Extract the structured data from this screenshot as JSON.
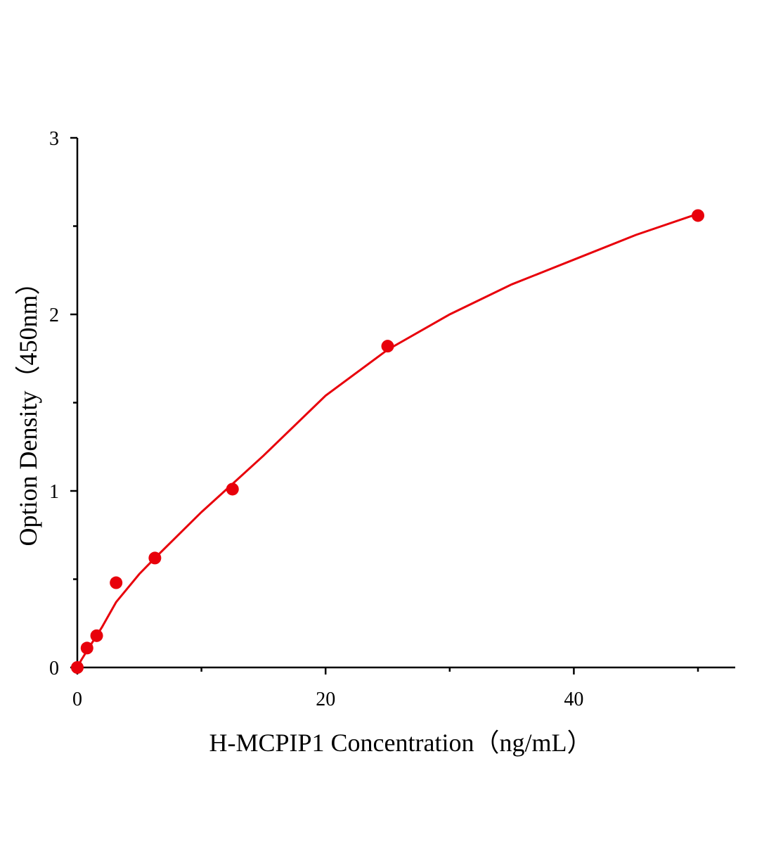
{
  "chart_data": {
    "type": "scatter",
    "title": "",
    "xlabel": "H-MCPIP1 Concentration（ng/mL）",
    "ylabel": "Option Density（450nm）",
    "xlim": [
      0,
      53
    ],
    "ylim": [
      0,
      3
    ],
    "x_ticks": [
      0,
      20,
      40
    ],
    "x_minor_ticks": [
      10,
      30,
      50
    ],
    "y_ticks": [
      0,
      1,
      2,
      3
    ],
    "y_minor_ticks": [
      0.5,
      1.5,
      2.5
    ],
    "grid": false,
    "color": "#e8000b",
    "series": [
      {
        "type": "scatter",
        "x": [
          0,
          0.78,
          1.56,
          3.125,
          6.25,
          12.5,
          25,
          50
        ],
        "y": [
          0.0,
          0.11,
          0.18,
          0.48,
          0.62,
          1.01,
          1.82,
          2.56
        ]
      },
      {
        "type": "line",
        "x": [
          0,
          0.3,
          1,
          1.56,
          2,
          3.125,
          5,
          6.25,
          10,
          12.5,
          15,
          20,
          25,
          30,
          35,
          40,
          45,
          50
        ],
        "y": [
          0,
          0.04,
          0.12,
          0.18,
          0.23,
          0.37,
          0.53,
          0.62,
          0.88,
          1.04,
          1.2,
          1.54,
          1.8,
          2.0,
          2.17,
          2.31,
          2.45,
          2.57
        ]
      }
    ]
  }
}
